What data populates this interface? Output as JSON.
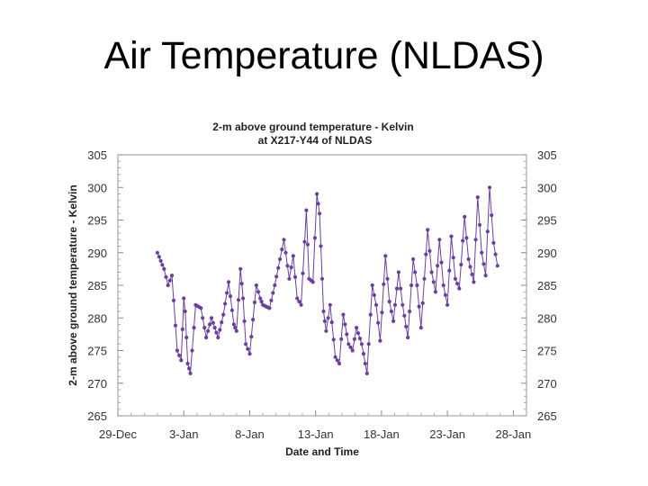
{
  "slide": {
    "title": "Air Temperature (NLDAS)"
  },
  "chart_data": {
    "type": "line",
    "title": "2-m above ground temperature - Kelvin",
    "subtitle": "at X217-Y44 of NLDAS",
    "xlabel": "Date and Time",
    "ylabel": "2-m above ground temperature - Kelvin",
    "ylim": [
      265,
      305
    ],
    "xlim": [
      0,
      31
    ],
    "x_ticks": [
      {
        "value": 0,
        "label": "29-Dec"
      },
      {
        "value": 5,
        "label": "3-Jan"
      },
      {
        "value": 10,
        "label": "8-Jan"
      },
      {
        "value": 15,
        "label": "13-Jan"
      },
      {
        "value": 20,
        "label": "18-Jan"
      },
      {
        "value": 25,
        "label": "23-Jan"
      },
      {
        "value": 30,
        "label": "28-Jan"
      }
    ],
    "y_ticks": [
      265,
      270,
      275,
      280,
      285,
      290,
      295,
      300,
      305
    ],
    "series_color": "#6b3fa0",
    "keypoints": [
      [
        3.0,
        290.0
      ],
      [
        3.5,
        287.5
      ],
      [
        3.8,
        285.0
      ],
      [
        4.1,
        286.5
      ],
      [
        4.5,
        275.0
      ],
      [
        4.8,
        273.5
      ],
      [
        5.0,
        283.0
      ],
      [
        5.1,
        281.0
      ],
      [
        5.3,
        273.0
      ],
      [
        5.5,
        271.5
      ],
      [
        5.9,
        282.0
      ],
      [
        6.3,
        281.5
      ],
      [
        6.7,
        277.0
      ],
      [
        7.1,
        280.0
      ],
      [
        7.6,
        277.0
      ],
      [
        8.0,
        280.5
      ],
      [
        8.4,
        285.5
      ],
      [
        8.8,
        279.0
      ],
      [
        9.0,
        278.0
      ],
      [
        9.3,
        287.5
      ],
      [
        9.5,
        283.0
      ],
      [
        9.7,
        276.0
      ],
      [
        10.0,
        274.5
      ],
      [
        10.5,
        285.0
      ],
      [
        10.8,
        283.0
      ],
      [
        11.0,
        282.0
      ],
      [
        11.5,
        281.5
      ],
      [
        11.9,
        285.0
      ],
      [
        12.3,
        289.0
      ],
      [
        12.6,
        292.0
      ],
      [
        13.0,
        286.0
      ],
      [
        13.3,
        289.5
      ],
      [
        13.6,
        283.0
      ],
      [
        13.9,
        282.0
      ],
      [
        14.3,
        296.5
      ],
      [
        14.5,
        286.0
      ],
      [
        14.8,
        285.5
      ],
      [
        15.1,
        299.0
      ],
      [
        15.3,
        296.0
      ],
      [
        15.4,
        291.0
      ],
      [
        15.6,
        281.0
      ],
      [
        15.8,
        278.0
      ],
      [
        16.1,
        282.0
      ],
      [
        16.5,
        274.0
      ],
      [
        16.8,
        273.0
      ],
      [
        17.1,
        280.5
      ],
      [
        17.5,
        276.0
      ],
      [
        17.8,
        275.0
      ],
      [
        18.1,
        278.5
      ],
      [
        18.5,
        276.0
      ],
      [
        18.9,
        271.5
      ],
      [
        19.3,
        285.0
      ],
      [
        19.6,
        282.0
      ],
      [
        19.9,
        276.5
      ],
      [
        20.3,
        289.5
      ],
      [
        20.6,
        282.5
      ],
      [
        20.9,
        279.5
      ],
      [
        21.3,
        287.0
      ],
      [
        21.6,
        282.0
      ],
      [
        22.0,
        277.0
      ],
      [
        22.4,
        289.0
      ],
      [
        22.7,
        285.0
      ],
      [
        23.0,
        278.5
      ],
      [
        23.5,
        293.5
      ],
      [
        23.8,
        287.0
      ],
      [
        24.1,
        284.0
      ],
      [
        24.4,
        292.0
      ],
      [
        24.7,
        285.0
      ],
      [
        25.0,
        282.0
      ],
      [
        25.3,
        292.5
      ],
      [
        25.6,
        286.0
      ],
      [
        25.9,
        284.5
      ],
      [
        26.3,
        295.5
      ],
      [
        26.6,
        289.0
      ],
      [
        27.0,
        285.5
      ],
      [
        27.3,
        298.5
      ],
      [
        27.6,
        290.0
      ],
      [
        27.9,
        286.5
      ],
      [
        28.2,
        300.0
      ],
      [
        28.5,
        291.5
      ],
      [
        28.8,
        288.0
      ]
    ]
  }
}
